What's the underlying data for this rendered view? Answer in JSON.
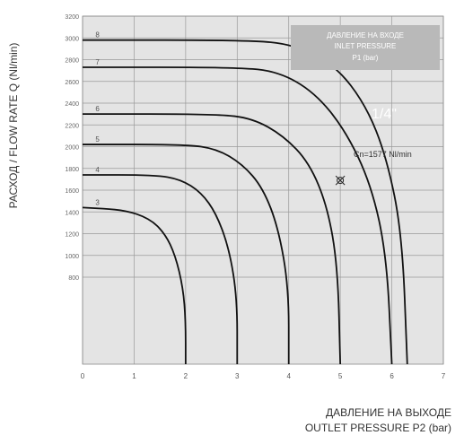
{
  "chart_data": {
    "type": "line",
    "xlabel_ru": "ДАВЛЕНИЕ НА ВЫХОДЕ",
    "xlabel_en": "OUTLET PRESSURE P2 (bar)",
    "ylabel": "РАСХОД / FLOW RATE Q (Nl/min)",
    "xlim": [
      0,
      7
    ],
    "ylim": [
      0,
      3200
    ],
    "x_ticks": [
      "0",
      "1",
      "2",
      "3",
      "4",
      "5",
      "6",
      "7"
    ],
    "y_ticks": [
      "800",
      "1000",
      "1200",
      "1400",
      "1600",
      "1800",
      "2000",
      "2200",
      "2400",
      "2600",
      "2800",
      "3000",
      "3200"
    ],
    "y_tick_values": [
      800,
      1000,
      1200,
      1400,
      1600,
      1800,
      2000,
      2200,
      2400,
      2600,
      2800,
      3000,
      3200
    ],
    "legend_box": {
      "line1": "ДАВЛЕНИЕ НА ВХОДЕ",
      "line2": "INLET PRESSURE",
      "line3": "P1 (bar)",
      "color": "#b9b9b9"
    },
    "annotation_size": "1/4\"",
    "annotation_cn": "Cn=1577 Nl/min",
    "marker_point": {
      "x": 5,
      "y": 1690
    },
    "series": [
      {
        "name": "3",
        "flat": 1440,
        "end": 2,
        "curve": [
          [
            0,
            1440
          ],
          [
            0.8,
            1420
          ],
          [
            1.3,
            1340
          ],
          [
            1.6,
            1200
          ],
          [
            1.8,
            1000
          ],
          [
            1.95,
            700
          ],
          [
            2,
            400
          ],
          [
            2,
            0
          ]
        ]
      },
      {
        "name": "4",
        "flat": 1740,
        "end": 3,
        "curve": [
          [
            0,
            1740
          ],
          [
            1.4,
            1740
          ],
          [
            1.9,
            1700
          ],
          [
            2.3,
            1580
          ],
          [
            2.6,
            1380
          ],
          [
            2.85,
            1050
          ],
          [
            3,
            600
          ],
          [
            3,
            0
          ]
        ]
      },
      {
        "name": "5",
        "flat": 2020,
        "end": 4,
        "curve": [
          [
            0,
            2020
          ],
          [
            2,
            2020
          ],
          [
            2.6,
            1980
          ],
          [
            3.1,
            1840
          ],
          [
            3.5,
            1620
          ],
          [
            3.8,
            1250
          ],
          [
            4,
            700
          ],
          [
            4,
            0
          ]
        ]
      },
      {
        "name": "6",
        "flat": 2300,
        "end": 5,
        "curve": [
          [
            0,
            2300
          ],
          [
            2.6,
            2300
          ],
          [
            3.3,
            2260
          ],
          [
            3.9,
            2100
          ],
          [
            4.4,
            1850
          ],
          [
            4.75,
            1450
          ],
          [
            4.95,
            900
          ],
          [
            5,
            0
          ]
        ]
      },
      {
        "name": "7",
        "flat": 2730,
        "end": 6,
        "curve": [
          [
            0,
            2730
          ],
          [
            3,
            2730
          ],
          [
            3.8,
            2690
          ],
          [
            4.5,
            2500
          ],
          [
            5.1,
            2150
          ],
          [
            5.6,
            1650
          ],
          [
            5.9,
            1000
          ],
          [
            6,
            0
          ]
        ]
      },
      {
        "name": "8",
        "flat": 2980,
        "end": 6.3,
        "curve": [
          [
            0,
            2980
          ],
          [
            3.2,
            2980
          ],
          [
            4.1,
            2940
          ],
          [
            4.9,
            2750
          ],
          [
            5.5,
            2380
          ],
          [
            5.9,
            1900
          ],
          [
            6.2,
            1200
          ],
          [
            6.3,
            0
          ]
        ]
      }
    ]
  }
}
